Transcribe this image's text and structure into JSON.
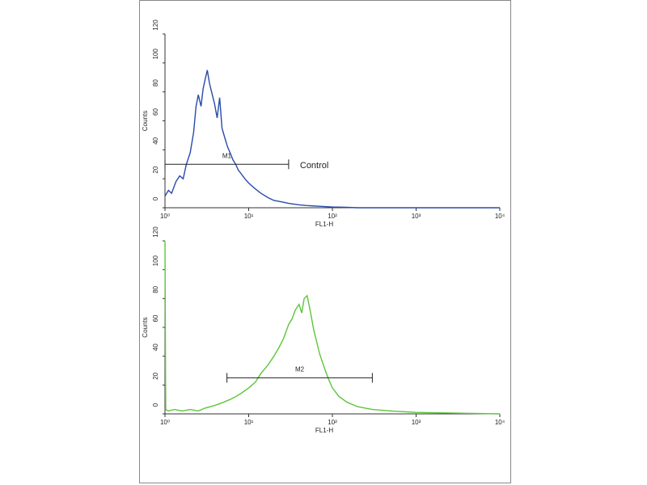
{
  "chart_data": [
    {
      "type": "line",
      "xlog": true,
      "color": "#2a4ba8",
      "x": [
        1,
        1.1,
        1.2,
        1.35,
        1.5,
        1.65,
        1.8,
        2,
        2.2,
        2.35,
        2.5,
        2.7,
        2.85,
        3,
        3.2,
        3.4,
        3.6,
        3.9,
        4.2,
        4.5,
        4.8,
        5.2,
        5.6,
        6,
        6.5,
        7,
        7.5,
        8,
        9,
        10,
        12,
        14,
        17,
        20,
        25,
        30,
        40,
        50,
        70,
        100,
        150,
        200,
        500,
        1000,
        3000,
        10000
      ],
      "values": [
        8,
        12,
        10,
        18,
        22,
        20,
        30,
        38,
        52,
        70,
        78,
        70,
        82,
        88,
        95,
        86,
        80,
        72,
        62,
        76,
        55,
        48,
        42,
        38,
        33,
        30,
        26,
        24,
        20,
        17,
        13,
        10,
        7,
        5,
        4,
        3,
        2,
        1.5,
        1,
        0.5,
        0.3,
        0,
        0,
        0,
        0,
        0
      ],
      "ylim": [
        0,
        120
      ],
      "yticks": [
        0,
        20,
        40,
        60,
        80,
        100,
        120
      ],
      "xlim": [
        1,
        10000
      ],
      "xticks": [
        {
          "value": 1,
          "label": "10⁰"
        },
        {
          "value": 10,
          "label": "10¹"
        },
        {
          "value": 100,
          "label": "10²"
        },
        {
          "value": 1000,
          "label": "10³"
        },
        {
          "value": 10000,
          "label": "10⁴"
        }
      ],
      "ylabel": "Counts",
      "xlabel": "FL1-H",
      "marker": {
        "label": "M1",
        "x": [
          1,
          30
        ],
        "y": 30
      },
      "annotation": "Control"
    },
    {
      "type": "line",
      "xlog": true,
      "color": "#5cc63a",
      "x": [
        1,
        1.02,
        1.1,
        1.3,
        1.6,
        2,
        2.5,
        3,
        3.5,
        4,
        5,
        6,
        7,
        8,
        10,
        12,
        14,
        17,
        20,
        23,
        26,
        30,
        33,
        36,
        40,
        43,
        46,
        50,
        55,
        60,
        65,
        70,
        80,
        90,
        100,
        120,
        150,
        200,
        300,
        500,
        1000,
        3000,
        10000
      ],
      "values": [
        120,
        3,
        2,
        3,
        2,
        3,
        2,
        4,
        5,
        6,
        8,
        10,
        12,
        14,
        18,
        22,
        28,
        34,
        40,
        46,
        52,
        62,
        66,
        72,
        76,
        70,
        80,
        82,
        70,
        58,
        50,
        42,
        32,
        24,
        18,
        12,
        8,
        5,
        3,
        2,
        1,
        0.5,
        0
      ],
      "ylim": [
        0,
        120
      ],
      "yticks": [
        0,
        20,
        40,
        60,
        80,
        100,
        120
      ],
      "xlim": [
        1,
        10000
      ],
      "xticks": [
        {
          "value": 1,
          "label": "10⁰"
        },
        {
          "value": 10,
          "label": "10¹"
        },
        {
          "value": 100,
          "label": "10²"
        },
        {
          "value": 1000,
          "label": "10³"
        },
        {
          "value": 10000,
          "label": "10⁴"
        }
      ],
      "ylabel": "Counts",
      "xlabel": "FL1-H",
      "marker": {
        "label": "M2",
        "x": [
          5.5,
          300
        ],
        "y": 25
      }
    }
  ]
}
